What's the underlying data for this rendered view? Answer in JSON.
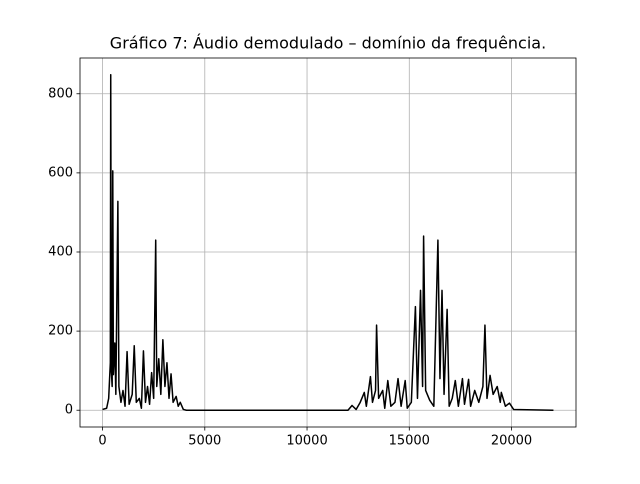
{
  "chart_data": {
    "type": "line",
    "title": "Gráfico 7: Áudio demodulado – domínio da frequência.",
    "x": [
      0,
      200,
      300,
      380,
      400,
      430,
      470,
      500,
      530,
      600,
      650,
      750,
      800,
      900,
      1000,
      1100,
      1200,
      1300,
      1450,
      1550,
      1650,
      1800,
      1900,
      2000,
      2100,
      2200,
      2300,
      2400,
      2500,
      2600,
      2650,
      2750,
      2850,
      2950,
      3050,
      3150,
      3250,
      3350,
      3450,
      3600,
      3700,
      3800,
      3950,
      4100,
      12000,
      12200,
      12400,
      12600,
      12800,
      12900,
      13100,
      13200,
      13350,
      13400,
      13500,
      13700,
      13800,
      13950,
      14100,
      14300,
      14450,
      14600,
      14800,
      14900,
      15100,
      15300,
      15400,
      15550,
      15650,
      15700,
      15800,
      16000,
      16200,
      16400,
      16500,
      16600,
      16700,
      16850,
      16950,
      17100,
      17250,
      17400,
      17600,
      17700,
      17900,
      18000,
      18200,
      18400,
      18600,
      18700,
      18800,
      18950,
      19100,
      19300,
      19450,
      19500,
      19700,
      19900,
      20100,
      22050
    ],
    "series": [
      {
        "color": "#000000",
        "values": [
          2,
          5,
          30,
          120,
          848,
          100,
          60,
          605,
          90,
          170,
          40,
          528,
          60,
          20,
          50,
          10,
          148,
          15,
          40,
          163,
          20,
          30,
          5,
          150,
          20,
          60,
          15,
          95,
          30,
          430,
          60,
          130,
          40,
          178,
          60,
          120,
          30,
          92,
          20,
          35,
          10,
          20,
          2,
          0,
          0,
          12,
          2,
          20,
          45,
          10,
          85,
          20,
          50,
          215,
          30,
          50,
          5,
          75,
          10,
          20,
          80,
          10,
          75,
          5,
          20,
          262,
          30,
          303,
          60,
          440,
          50,
          25,
          10,
          430,
          80,
          303,
          40,
          255,
          10,
          30,
          75,
          10,
          80,
          15,
          78,
          10,
          50,
          20,
          60,
          215,
          30,
          88,
          40,
          60,
          20,
          45,
          10,
          18,
          2,
          0
        ]
      }
    ],
    "xlim": [
      -1102.5,
      23152.5
    ],
    "xticks": [
      0,
      5000,
      10000,
      15000,
      20000
    ],
    "ylim": [
      -42.4,
      890.4
    ],
    "yticks": [
      0,
      200,
      400,
      600,
      800
    ],
    "grid": true
  }
}
